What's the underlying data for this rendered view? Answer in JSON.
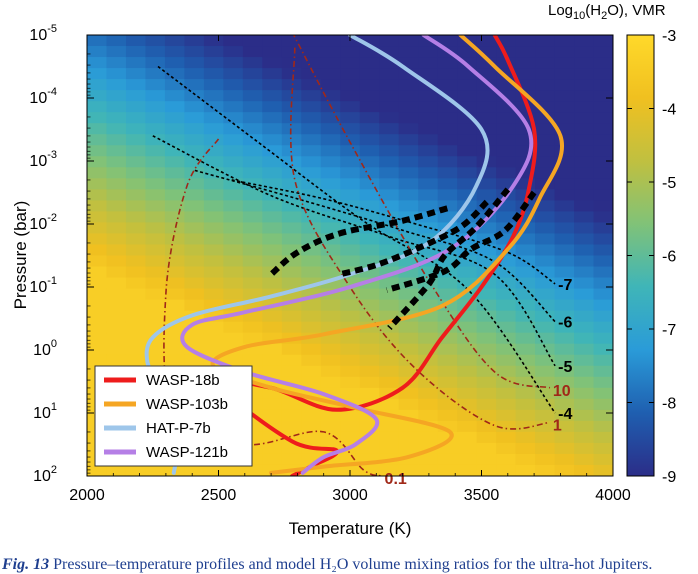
{
  "chart_data": {
    "type": "heatmap",
    "title": "",
    "xlabel": "Temperature (K)",
    "ylabel": "Pressure (bar)",
    "xlim": [
      2000,
      4000
    ],
    "ylim_log10": [
      2,
      -5
    ],
    "y_log_scale": true,
    "y_inverted": true,
    "x_ticks": [
      "2000",
      "2500",
      "3000",
      "3500",
      "4000"
    ],
    "y_ticks": [
      {
        "base": "10",
        "exp": "-5"
      },
      {
        "base": "10",
        "exp": "-4"
      },
      {
        "base": "10",
        "exp": "-3"
      },
      {
        "base": "10",
        "exp": "-2"
      },
      {
        "base": "10",
        "exp": "-1"
      },
      {
        "base": "10",
        "exp": "0"
      },
      {
        "base": "10",
        "exp": "1"
      },
      {
        "base": "10",
        "exp": "2"
      }
    ],
    "colorbar": {
      "title_main": "Log",
      "title_sub": "10",
      "title_rest": "(H",
      "title_sub2": "2",
      "title_end": "O), VMR",
      "range": [
        -9,
        -3
      ],
      "ticks": [
        "-3",
        "-4",
        "-5",
        "-6",
        "-7",
        "-8",
        "-9"
      ],
      "colors": [
        "#2b2d88",
        "#1f5fb0",
        "#2a9bd8",
        "#3fb5b8",
        "#80c278",
        "#c0c040",
        "#f0c020",
        "#ffd92a"
      ]
    },
    "heatmap_note": "log10 H2O VMR: about -3.3 (yellow) at high pressure / low temperature, dropping toward -9 (dark blue) at low pressure / high temperature",
    "contours": [
      {
        "label": "-7",
        "points": [
          [
            2550,
            -2.7
          ],
          [
            2900,
            -2.4
          ],
          [
            3250,
            -2.0
          ],
          [
            3600,
            -1.55
          ],
          [
            3780,
            -1.05
          ]
        ]
      },
      {
        "label": "-6",
        "points": [
          [
            2410,
            -2.85
          ],
          [
            2800,
            -2.4
          ],
          [
            3200,
            -1.9
          ],
          [
            3550,
            -1.4
          ],
          [
            3780,
            -0.45
          ]
        ]
      },
      {
        "label": "-5",
        "points": [
          [
            2250,
            -3.4
          ],
          [
            2700,
            -2.45
          ],
          [
            3150,
            -1.8
          ],
          [
            3550,
            -1.2
          ],
          [
            3780,
            0.25
          ]
        ]
      },
      {
        "label": "-4",
        "points": [
          [
            2270,
            -4.5
          ],
          [
            2650,
            -3.3
          ],
          [
            3050,
            -2.05
          ],
          [
            3450,
            -0.95
          ],
          [
            3780,
            1.0
          ]
        ]
      }
    ],
    "condensation_curves": [
      {
        "label": "10",
        "color": "#a02818",
        "points": [
          [
            2780,
            -5.05
          ],
          [
            3000,
            -3.3
          ],
          [
            3300,
            -1.1
          ],
          [
            3550,
            0.35
          ],
          [
            3760,
            0.6
          ]
        ]
      },
      {
        "label": "1",
        "color": "#a02818",
        "points": [
          [
            2790,
            -4.8
          ],
          [
            2790,
            -2.7
          ],
          [
            3000,
            -1.0
          ],
          [
            3250,
            0.3
          ],
          [
            3550,
            1.2
          ],
          [
            3760,
            1.15
          ]
        ]
      },
      {
        "label": "0.1",
        "color": "#a02818",
        "points": [
          [
            2500,
            -3.35
          ],
          [
            2380,
            -2.6
          ],
          [
            2300,
            -0.9
          ],
          [
            2330,
            1.0
          ],
          [
            2600,
            1.5
          ],
          [
            2900,
            1.3
          ],
          [
            3050,
            1.9
          ],
          [
            3120,
            2.0
          ]
        ]
      }
    ],
    "series": [
      {
        "name": "WASP-18b",
        "color": "#ee1c1c",
        "points": [
          [
            3550,
            -5.0
          ],
          [
            3600,
            -4.6
          ],
          [
            3700,
            -3.5
          ],
          [
            3680,
            -2.55
          ],
          [
            3620,
            -1.8
          ],
          [
            3500,
            -1.0
          ],
          [
            3350,
            -0.2
          ],
          [
            3200,
            0.6
          ],
          [
            2950,
            0.95
          ],
          [
            2700,
            0.6
          ],
          [
            2500,
            0.55
          ],
          [
            2780,
            1.45
          ],
          [
            2950,
            1.6
          ],
          [
            2850,
            1.85
          ],
          [
            2780,
            2.0
          ]
        ]
      },
      {
        "name": "WASP-103b",
        "color": "#f5a623",
        "points": [
          [
            3420,
            -5.0
          ],
          [
            3550,
            -4.5
          ],
          [
            3800,
            -3.4
          ],
          [
            3720,
            -2.4
          ],
          [
            3600,
            -1.6
          ],
          [
            3350,
            -0.7
          ],
          [
            2900,
            -0.25
          ],
          [
            2600,
            -0.05
          ],
          [
            2480,
            0.25
          ],
          [
            2700,
            0.6
          ],
          [
            3000,
            0.9
          ],
          [
            3380,
            1.3
          ],
          [
            3220,
            1.7
          ],
          [
            2900,
            1.85
          ],
          [
            2700,
            1.95
          ]
        ]
      },
      {
        "name": "HAT-P-7b",
        "color": "#9ec6ea",
        "points": [
          [
            3000,
            -5.0
          ],
          [
            3200,
            -4.5
          ],
          [
            3500,
            -3.5
          ],
          [
            3480,
            -2.6
          ],
          [
            3300,
            -1.7
          ],
          [
            3000,
            -1.2
          ],
          [
            2700,
            -0.85
          ],
          [
            2400,
            -0.55
          ],
          [
            2250,
            -0.2
          ],
          [
            2230,
            0.2
          ],
          [
            2280,
            0.5
          ],
          [
            2330,
            0.8
          ],
          [
            2310,
            1.2
          ],
          [
            2340,
            1.6
          ],
          [
            2330,
            1.95
          ]
        ]
      },
      {
        "name": "WASP-121b",
        "color": "#b57fe6",
        "points": [
          [
            3280,
            -5.0
          ],
          [
            3450,
            -4.5
          ],
          [
            3680,
            -3.5
          ],
          [
            3620,
            -2.6
          ],
          [
            3380,
            -1.6
          ],
          [
            3000,
            -1.0
          ],
          [
            2600,
            -0.6
          ],
          [
            2400,
            -0.4
          ],
          [
            2380,
            -0.05
          ],
          [
            2600,
            0.35
          ],
          [
            2900,
            0.7
          ],
          [
            3100,
            1.1
          ],
          [
            3020,
            1.5
          ],
          [
            2900,
            1.7
          ],
          [
            2820,
            1.95
          ]
        ]
      }
    ],
    "black_segments": [
      {
        "name": "WASP-18b",
        "points": [
          [
            3600,
            -2.55
          ],
          [
            3480,
            -1.95
          ],
          [
            3360,
            -1.5
          ],
          [
            3300,
            -1.05
          ],
          [
            3150,
            -0.35
          ]
        ]
      },
      {
        "name": "WASP-103b",
        "points": [
          [
            3700,
            -2.5
          ],
          [
            3590,
            -1.9
          ],
          [
            3460,
            -1.6
          ],
          [
            3360,
            -1.25
          ],
          [
            3140,
            -0.95
          ]
        ]
      },
      {
        "name": "HAT-P-7b",
        "points": [
          [
            3370,
            -2.25
          ],
          [
            3200,
            -2.05
          ],
          [
            2960,
            -1.85
          ],
          [
            2800,
            -1.55
          ],
          [
            2700,
            -1.2
          ]
        ]
      },
      {
        "name": "WASP-121b",
        "points": [
          [
            3520,
            -2.35
          ],
          [
            3420,
            -1.95
          ],
          [
            3250,
            -1.6
          ],
          [
            3100,
            -1.35
          ],
          [
            2960,
            -1.2
          ]
        ]
      }
    ],
    "legend_position": "bottom-left",
    "grid": false
  },
  "caption": {
    "label": "Fig. 13",
    "text": "Pressure–temperature profiles and model H₂O volume mixing ratios for the ultra-hot Jupiters."
  }
}
